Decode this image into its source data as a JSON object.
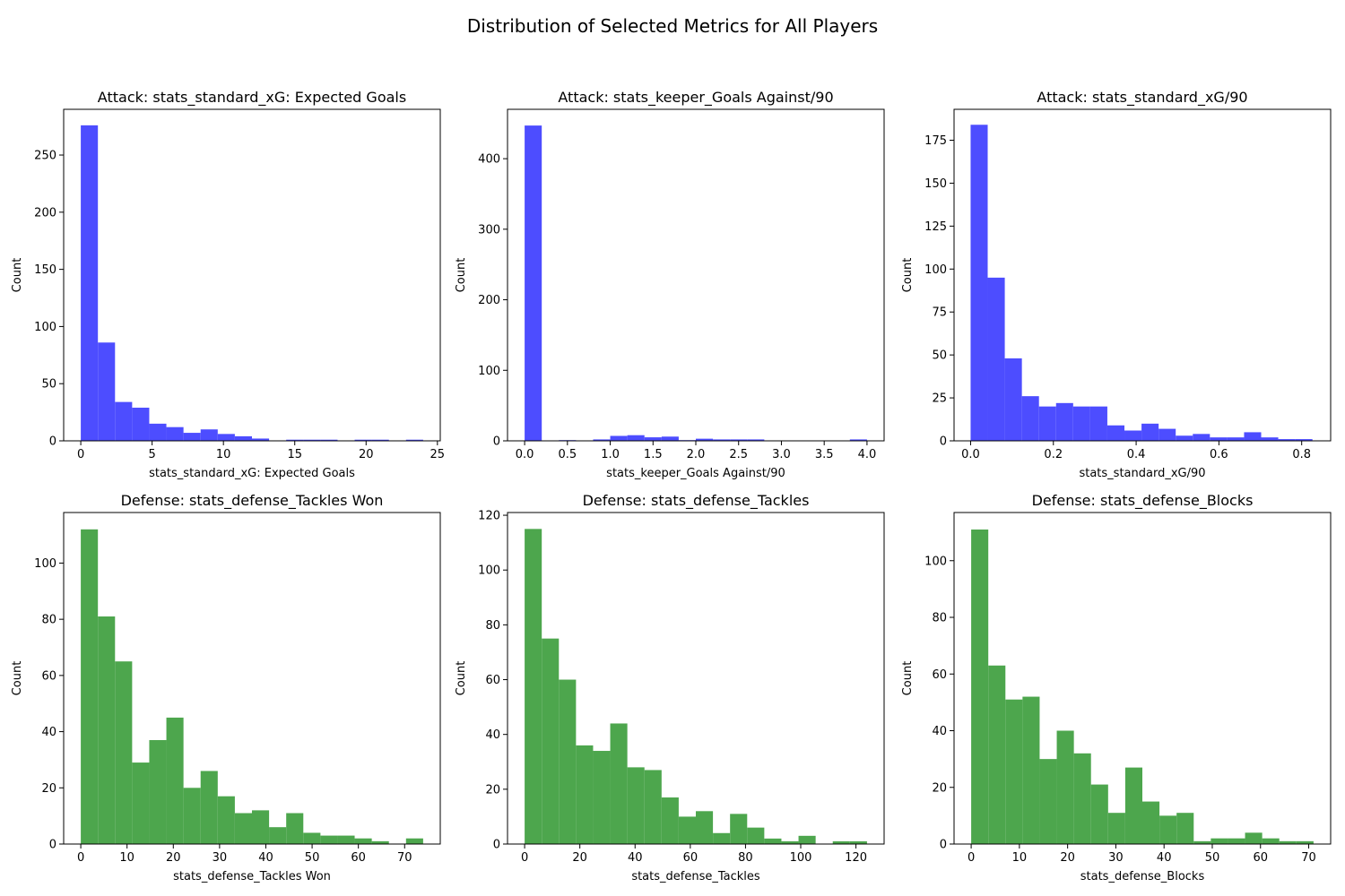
{
  "figure": {
    "title": "Distribution of Selected Metrics for All Players"
  },
  "chart_data": [
    {
      "type": "bar",
      "title": "Attack: stats_standard_xG: Expected Goals",
      "xlabel": "stats_standard_xG: Expected Goals",
      "ylabel": "Count",
      "color": "#4d4dff",
      "xlim": [
        -1.2,
        25.2
      ],
      "ylim": [
        0,
        290
      ],
      "xticks": [
        0,
        5,
        10,
        15,
        20,
        25
      ],
      "yticks": [
        0,
        50,
        100,
        150,
        200,
        250
      ],
      "bin_edges": [
        0,
        1.2,
        2.4,
        3.6,
        4.8,
        6.0,
        7.2,
        8.4,
        9.6,
        10.8,
        12.0,
        13.2,
        14.4,
        15.6,
        16.8,
        18.0,
        19.2,
        20.4,
        21.6,
        22.8,
        24.0
      ],
      "values": [
        276,
        86,
        34,
        29,
        15,
        12,
        7,
        10,
        6,
        4,
        2,
        0,
        1,
        1,
        1,
        0,
        1,
        1,
        0,
        1
      ]
    },
    {
      "type": "bar",
      "title": "Attack: stats_keeper_Goals Against/90",
      "xlabel": "stats_keeper_Goals Against/90",
      "ylabel": "Count",
      "color": "#4d4dff",
      "xlim": [
        -0.2,
        4.2
      ],
      "ylim": [
        0,
        470
      ],
      "xticks": [
        0.0,
        0.5,
        1.0,
        1.5,
        2.0,
        2.5,
        3.0,
        3.5,
        4.0
      ],
      "yticks": [
        0,
        100,
        200,
        300,
        400
      ],
      "bin_edges": [
        0,
        0.2,
        0.4,
        0.6,
        0.8,
        1.0,
        1.2,
        1.4,
        1.6,
        1.8,
        2.0,
        2.2,
        2.4,
        2.6,
        2.8,
        3.0,
        3.2,
        3.4,
        3.6,
        3.8,
        4.0
      ],
      "values": [
        447,
        0,
        1,
        0,
        2,
        7,
        8,
        5,
        6,
        1,
        3,
        2,
        2,
        2,
        0,
        0,
        0,
        0,
        0,
        2
      ]
    },
    {
      "type": "bar",
      "title": "Attack: stats_standard_xG/90",
      "xlabel": "stats_standard_xG/90",
      "ylabel": "Count",
      "color": "#4d4dff",
      "xlim": [
        -0.04,
        0.87
      ],
      "ylim": [
        0,
        193
      ],
      "xticks": [
        0.0,
        0.2,
        0.4,
        0.6,
        0.8
      ],
      "yticks": [
        0,
        25,
        50,
        75,
        100,
        125,
        150,
        175
      ],
      "bin_edges": [
        0,
        0.0413,
        0.0826,
        0.1239,
        0.1652,
        0.2065,
        0.2478,
        0.2891,
        0.3304,
        0.3717,
        0.413,
        0.4543,
        0.4956,
        0.5369,
        0.5782,
        0.6195,
        0.6608,
        0.7021,
        0.7434,
        0.7847,
        0.826
      ],
      "values": [
        184,
        95,
        48,
        26,
        20,
        22,
        20,
        20,
        9,
        6,
        10,
        7,
        3,
        4,
        2,
        2,
        5,
        2,
        1,
        1
      ]
    },
    {
      "type": "bar",
      "title": "Defense: stats_defense_Tackles Won",
      "xlabel": "stats_defense_Tackles Won",
      "ylabel": "Count",
      "color": "#4da64d",
      "xlim": [
        -3.7,
        77.7
      ],
      "ylim": [
        0,
        118
      ],
      "xticks": [
        0,
        10,
        20,
        30,
        40,
        50,
        60,
        70
      ],
      "yticks": [
        0,
        20,
        40,
        60,
        80,
        100
      ],
      "bin_edges": [
        0,
        3.7,
        7.4,
        11.1,
        14.8,
        18.5,
        22.2,
        25.9,
        29.6,
        33.3,
        37.0,
        40.7,
        44.4,
        48.1,
        51.8,
        55.5,
        59.2,
        62.9,
        66.6,
        70.3,
        74.0
      ],
      "values": [
        112,
        81,
        65,
        29,
        37,
        45,
        20,
        26,
        17,
        11,
        12,
        6,
        11,
        4,
        3,
        3,
        2,
        1,
        0,
        2
      ]
    },
    {
      "type": "bar",
      "title": "Defense: stats_defense_Tackles",
      "xlabel": "stats_defense_Tackles",
      "ylabel": "Count",
      "color": "#4da64d",
      "xlim": [
        -6.2,
        130.2
      ],
      "ylim": [
        0,
        121
      ],
      "xticks": [
        0,
        20,
        40,
        60,
        80,
        100,
        120
      ],
      "yticks": [
        0,
        20,
        40,
        60,
        80,
        100,
        120
      ],
      "bin_edges": [
        0,
        6.2,
        12.4,
        18.6,
        24.8,
        31.0,
        37.2,
        43.4,
        49.6,
        55.8,
        62.0,
        68.2,
        74.4,
        80.6,
        86.8,
        93.0,
        99.2,
        105.4,
        111.6,
        117.8,
        124.0
      ],
      "values": [
        115,
        75,
        60,
        36,
        34,
        44,
        28,
        27,
        17,
        10,
        12,
        4,
        11,
        6,
        2,
        1,
        3,
        0,
        1,
        1
      ]
    },
    {
      "type": "bar",
      "title": "Defense: stats_defense_Blocks",
      "xlabel": "stats_defense_Blocks",
      "ylabel": "Count",
      "color": "#4da64d",
      "xlim": [
        -3.55,
        74.55
      ],
      "ylim": [
        0,
        117
      ],
      "xticks": [
        0,
        10,
        20,
        30,
        40,
        50,
        60,
        70
      ],
      "yticks": [
        0,
        20,
        40,
        60,
        80,
        100
      ],
      "bin_edges": [
        0,
        3.55,
        7.1,
        10.65,
        14.2,
        17.75,
        21.3,
        24.85,
        28.4,
        31.95,
        35.5,
        39.05,
        42.6,
        46.15,
        49.7,
        53.25,
        56.8,
        60.35,
        63.9,
        67.45,
        71.0
      ],
      "values": [
        111,
        63,
        51,
        52,
        30,
        40,
        32,
        21,
        11,
        27,
        15,
        10,
        11,
        1,
        2,
        2,
        4,
        2,
        1,
        1
      ]
    }
  ]
}
